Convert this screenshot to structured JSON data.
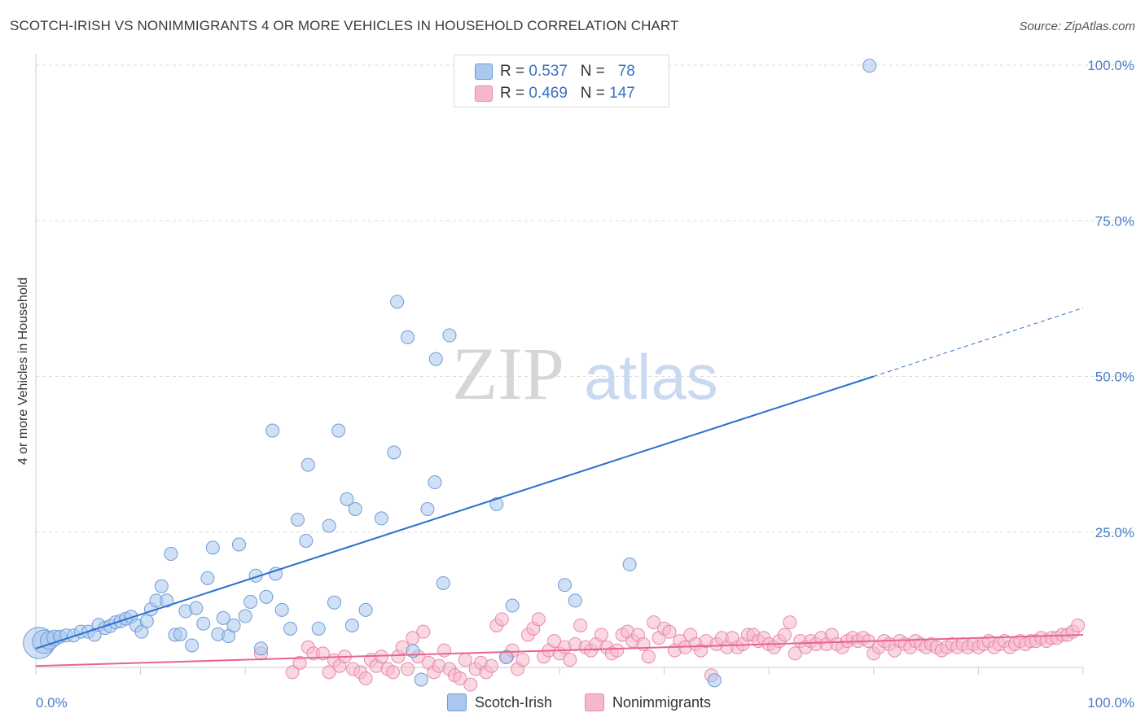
{
  "header": {
    "title": "SCOTCH-IRISH VS NONIMMIGRANTS 4 OR MORE VEHICLES IN HOUSEHOLD CORRELATION CHART",
    "source": "Source: ZipAtlas.com"
  },
  "watermark": {
    "zip": "ZIP",
    "atlas": "atlas"
  },
  "legend": {
    "rows": [
      {
        "r_label": "R = ",
        "r_value": "0.537",
        "n_label": "N = ",
        "n_value": "78"
      },
      {
        "r_label": "R = ",
        "r_value": "0.469",
        "n_label": "N = ",
        "n_value": "147"
      }
    ]
  },
  "colors": {
    "blue_fill": "#aac8ef",
    "blue_stroke": "#6f9bd6",
    "blue_line": "#2a6fd1",
    "pink_fill": "#f5b8cb",
    "pink_stroke": "#e88aa8",
    "pink_line": "#e8648f"
  },
  "chart_data": {
    "type": "scatter",
    "title": "SCOTCH-IRISH VS NONIMMIGRANTS 4 OR MORE VEHICLES IN HOUSEHOLD CORRELATION CHART",
    "xlabel": "",
    "ylabel": "4 or more Vehicles in Household",
    "xlim": [
      0,
      100
    ],
    "ylim": [
      0,
      100
    ],
    "x_tick_labels": [
      "0.0%",
      "100.0%"
    ],
    "y_tick_labels": [
      "100.0%",
      "75.0%",
      "50.0%",
      "25.0%"
    ],
    "y_tick_values": [
      100,
      75,
      50,
      25
    ],
    "series": [
      {
        "name": "Scotch-Irish",
        "r": 0.537,
        "n": 78,
        "trend": {
          "x0": 0,
          "y0": 6.3,
          "x1": 80,
          "y1": 50.0,
          "dash_to_x": 100,
          "dash_to_y": 61.0
        },
        "points": [
          [
            0.3,
            7.2,
            2.4
          ],
          [
            0.8,
            7.4,
            1.8
          ],
          [
            1.3,
            7.6,
            1.4
          ],
          [
            1.8,
            8.0,
            1.2
          ],
          [
            2.3,
            8.2,
            1.0
          ],
          [
            2.9,
            8.4,
            1.0
          ],
          [
            3.6,
            8.4,
            1.0
          ],
          [
            4.3,
            9.0,
            1.0
          ],
          [
            5.0,
            9.0,
            1.0
          ],
          [
            5.6,
            8.5,
            1.0
          ],
          [
            6.0,
            10.1,
            1.0
          ],
          [
            6.6,
            9.6,
            1.0
          ],
          [
            7.1,
            9.9,
            1.0
          ],
          [
            7.6,
            10.5,
            1.0
          ],
          [
            8.1,
            10.7,
            1.0
          ],
          [
            8.6,
            11.1,
            1.0
          ],
          [
            9.1,
            11.4,
            1.0
          ],
          [
            9.6,
            10.0,
            1.0
          ],
          [
            10.1,
            9.0,
            1.0
          ],
          [
            10.6,
            10.7,
            1.0
          ],
          [
            11.0,
            12.6,
            1.0
          ],
          [
            11.5,
            14.0,
            1.0
          ],
          [
            12.0,
            16.3,
            1.0
          ],
          [
            12.5,
            14.0,
            1.0
          ],
          [
            12.9,
            21.5,
            1.0
          ],
          [
            13.3,
            8.5,
            1.0
          ],
          [
            13.8,
            8.6,
            1.0
          ],
          [
            14.3,
            12.3,
            1.0
          ],
          [
            14.9,
            6.8,
            1.0
          ],
          [
            15.3,
            12.8,
            1.0
          ],
          [
            16.0,
            10.3,
            1.0
          ],
          [
            16.4,
            17.6,
            1.0
          ],
          [
            16.9,
            22.5,
            1.0
          ],
          [
            17.4,
            8.6,
            1.0
          ],
          [
            17.9,
            11.2,
            1.0
          ],
          [
            18.4,
            8.3,
            1.0
          ],
          [
            18.9,
            10.0,
            1.0
          ],
          [
            19.4,
            23.0,
            1.0
          ],
          [
            20.0,
            11.5,
            1.0
          ],
          [
            20.5,
            13.8,
            1.0
          ],
          [
            21.0,
            18.0,
            1.0
          ],
          [
            21.5,
            6.3,
            1.0
          ],
          [
            22.0,
            14.6,
            1.0
          ],
          [
            22.6,
            41.3,
            1.0
          ],
          [
            22.9,
            18.3,
            1.0
          ],
          [
            23.5,
            12.5,
            1.0
          ],
          [
            24.3,
            9.5,
            1.0
          ],
          [
            25.0,
            27.0,
            1.0
          ],
          [
            25.8,
            23.6,
            1.0
          ],
          [
            26.0,
            35.8,
            1.0
          ],
          [
            27.0,
            9.5,
            1.0
          ],
          [
            28.0,
            26.0,
            1.0
          ],
          [
            28.5,
            13.7,
            1.0
          ],
          [
            28.9,
            41.3,
            1.0
          ],
          [
            29.7,
            30.3,
            1.0
          ],
          [
            30.2,
            10.0,
            1.0
          ],
          [
            30.5,
            28.7,
            1.0
          ],
          [
            31.5,
            12.5,
            1.0
          ],
          [
            33.0,
            27.2,
            1.0
          ],
          [
            34.2,
            37.8,
            1.0
          ],
          [
            34.5,
            62.0,
            1.0
          ],
          [
            35.5,
            56.3,
            1.0
          ],
          [
            36.0,
            5.9,
            1.0
          ],
          [
            36.8,
            1.3,
            1.0
          ],
          [
            37.4,
            28.7,
            1.0
          ],
          [
            38.1,
            33.0,
            1.0
          ],
          [
            38.2,
            52.8,
            1.0
          ],
          [
            38.9,
            16.8,
            1.0
          ],
          [
            39.5,
            56.6,
            1.0
          ],
          [
            44.0,
            29.5,
            1.0
          ],
          [
            44.9,
            4.9,
            1.0
          ],
          [
            45.5,
            13.2,
            1.0
          ],
          [
            50.5,
            16.5,
            1.0
          ],
          [
            51.5,
            14.0,
            1.0
          ],
          [
            56.7,
            19.8,
            1.0
          ],
          [
            64.8,
            1.2,
            1.0
          ],
          [
            79.6,
            99.9,
            1.0
          ]
        ]
      },
      {
        "name": "Nonimmigrants",
        "r": 0.469,
        "n": 147,
        "trend": {
          "x0": 0,
          "y0": 3.5,
          "x1": 100,
          "y1": 8.5
        },
        "points": [
          [
            21.5,
            5.5
          ],
          [
            24.5,
            2.5
          ],
          [
            25.2,
            4.0
          ],
          [
            26.0,
            6.5
          ],
          [
            26.5,
            5.5
          ],
          [
            27.4,
            5.5
          ],
          [
            28.0,
            2.5
          ],
          [
            28.5,
            4.4
          ],
          [
            29.0,
            3.5
          ],
          [
            29.5,
            5.0
          ],
          [
            30.3,
            3.0
          ],
          [
            31.0,
            2.5
          ],
          [
            31.5,
            1.5
          ],
          [
            32.0,
            4.5
          ],
          [
            32.5,
            3.5
          ],
          [
            33.0,
            5.0
          ],
          [
            33.6,
            3.0
          ],
          [
            34.1,
            2.5
          ],
          [
            34.6,
            5.0
          ],
          [
            35.0,
            6.5
          ],
          [
            35.5,
            3.0
          ],
          [
            36.0,
            8.0
          ],
          [
            36.5,
            5.0
          ],
          [
            37.0,
            9.0
          ],
          [
            37.5,
            4.0
          ],
          [
            38.0,
            2.5
          ],
          [
            38.5,
            3.5
          ],
          [
            39.0,
            6.0
          ],
          [
            39.5,
            3.0
          ],
          [
            40.0,
            2.0
          ],
          [
            40.5,
            1.5
          ],
          [
            41.0,
            4.5
          ],
          [
            41.5,
            0.5
          ],
          [
            42.0,
            3.0
          ],
          [
            42.5,
            4.0
          ],
          [
            43.0,
            2.5
          ],
          [
            43.5,
            3.5
          ],
          [
            44.0,
            10.0
          ],
          [
            44.5,
            11.0
          ],
          [
            45.0,
            5.0
          ],
          [
            45.5,
            6.0
          ],
          [
            46.0,
            3.0
          ],
          [
            46.5,
            4.5
          ],
          [
            47.0,
            8.5
          ],
          [
            47.5,
            9.5
          ],
          [
            48.0,
            11.0
          ],
          [
            48.5,
            5.0
          ],
          [
            49.0,
            6.0
          ],
          [
            49.5,
            7.5
          ],
          [
            50.0,
            5.5
          ],
          [
            50.5,
            6.5
          ],
          [
            51.0,
            4.5
          ],
          [
            51.5,
            7.0
          ],
          [
            52.0,
            10.0
          ],
          [
            52.5,
            6.5
          ],
          [
            53.0,
            6.0
          ],
          [
            53.5,
            7.0
          ],
          [
            54.0,
            8.5
          ],
          [
            54.5,
            6.5
          ],
          [
            55.0,
            5.5
          ],
          [
            55.5,
            6.0
          ],
          [
            56.0,
            8.5
          ],
          [
            56.5,
            9.0
          ],
          [
            57.0,
            7.5
          ],
          [
            57.5,
            8.5
          ],
          [
            58.0,
            7.0
          ],
          [
            58.5,
            5.0
          ],
          [
            59.0,
            10.5
          ],
          [
            59.5,
            8.0
          ],
          [
            60.0,
            9.5
          ],
          [
            60.5,
            9.0
          ],
          [
            61.0,
            6.0
          ],
          [
            61.5,
            7.5
          ],
          [
            62.0,
            6.5
          ],
          [
            62.5,
            8.5
          ],
          [
            63.0,
            7.0
          ],
          [
            63.5,
            6.0
          ],
          [
            64.0,
            7.5
          ],
          [
            64.5,
            2.0
          ],
          [
            65.0,
            7.0
          ],
          [
            65.5,
            8.0
          ],
          [
            66.0,
            6.5
          ],
          [
            66.5,
            8.0
          ],
          [
            67.0,
            6.5
          ],
          [
            67.5,
            7.0
          ],
          [
            68.0,
            8.5
          ],
          [
            68.5,
            8.5
          ],
          [
            69.0,
            7.5
          ],
          [
            69.5,
            8.0
          ],
          [
            70.0,
            7.0
          ],
          [
            70.5,
            6.5
          ],
          [
            71.0,
            7.5
          ],
          [
            71.5,
            8.5
          ],
          [
            72.0,
            10.5
          ],
          [
            72.5,
            5.5
          ],
          [
            73.0,
            7.5
          ],
          [
            73.5,
            6.5
          ],
          [
            74.0,
            7.5
          ],
          [
            74.5,
            7.0
          ],
          [
            75.0,
            8.0
          ],
          [
            75.5,
            7.0
          ],
          [
            76.0,
            8.5
          ],
          [
            76.5,
            7.0
          ],
          [
            77.0,
            6.5
          ],
          [
            77.5,
            7.5
          ],
          [
            78.0,
            8.0
          ],
          [
            78.5,
            7.5
          ],
          [
            79.0,
            8.0
          ],
          [
            79.5,
            7.5
          ],
          [
            80.0,
            5.5
          ],
          [
            80.5,
            6.5
          ],
          [
            81.0,
            7.5
          ],
          [
            81.5,
            7.0
          ],
          [
            82.0,
            6.0
          ],
          [
            82.5,
            7.5
          ],
          [
            83.0,
            7.0
          ],
          [
            83.5,
            6.5
          ],
          [
            84.0,
            7.5
          ],
          [
            84.5,
            7.0
          ],
          [
            85.0,
            6.5
          ],
          [
            85.5,
            7.0
          ],
          [
            86.0,
            6.5
          ],
          [
            86.5,
            6.0
          ],
          [
            87.0,
            6.5
          ],
          [
            87.5,
            7.0
          ],
          [
            88.0,
            6.5
          ],
          [
            88.5,
            7.0
          ],
          [
            89.0,
            6.5
          ],
          [
            89.5,
            7.0
          ],
          [
            90.0,
            6.5
          ],
          [
            90.5,
            7.0
          ],
          [
            91.0,
            7.5
          ],
          [
            91.5,
            6.5
          ],
          [
            92.0,
            7.0
          ],
          [
            92.5,
            7.5
          ],
          [
            93.0,
            6.5
          ],
          [
            93.5,
            7.0
          ],
          [
            94.0,
            7.5
          ],
          [
            94.5,
            7.0
          ],
          [
            95.0,
            7.5
          ],
          [
            95.5,
            7.5
          ],
          [
            96.0,
            8.0
          ],
          [
            96.5,
            7.5
          ],
          [
            97.0,
            8.0
          ],
          [
            97.5,
            8.0
          ],
          [
            98.0,
            8.5
          ],
          [
            98.5,
            8.5
          ],
          [
            99.0,
            9.0
          ],
          [
            99.5,
            10.0
          ]
        ]
      }
    ]
  },
  "bottom_legend": {
    "series_a": "Scotch-Irish",
    "series_b": "Nonimmigrants"
  }
}
